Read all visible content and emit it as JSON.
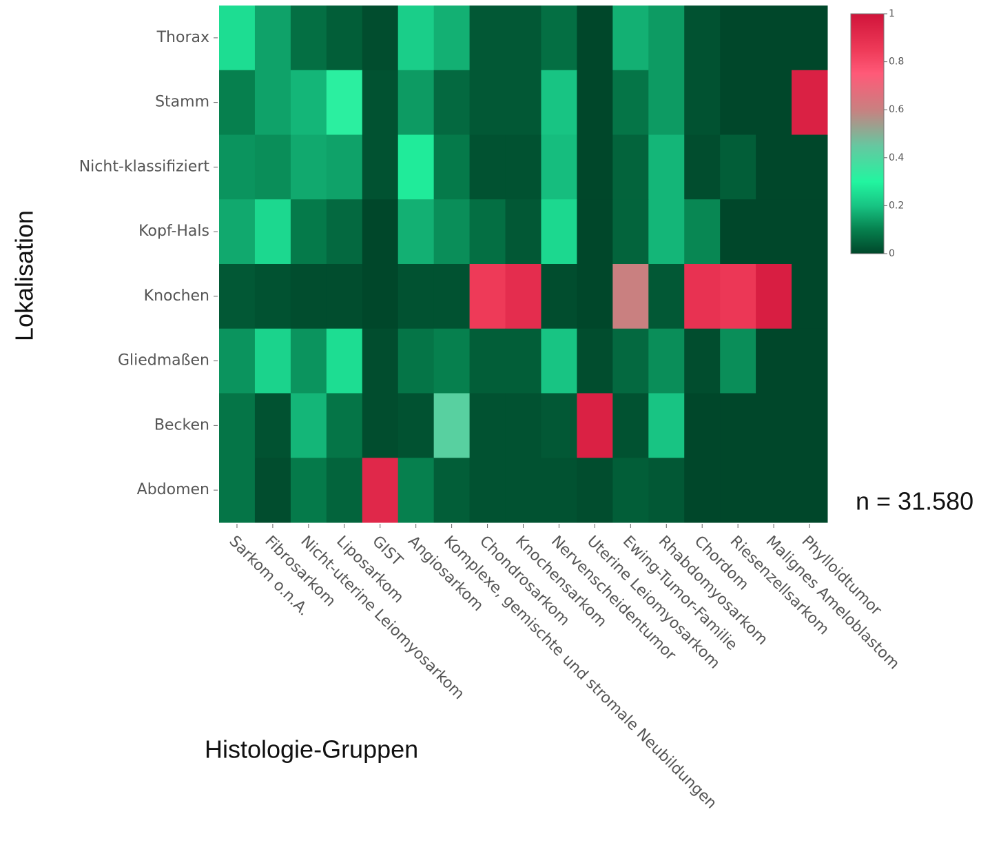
{
  "chart_data": {
    "type": "heatmap",
    "x_label": "Histologie-Gruppen",
    "y_label": "Lokalisation",
    "annotation": "n = 31.580",
    "categories": [
      "Sarkom o.n.A.",
      "Fibrosarkom",
      "Nicht-uterine Leiomyosarkom",
      "Liposarkom",
      "GIST",
      "Angiosarkom",
      "Komplexe, gemischte und stromale Neubildungen",
      "Chondrosarkom",
      "Knochensarkom",
      "Nervenscheidentumor",
      "Uterine Leiomyosarkom",
      "Ewing-Tumor-Familie",
      "Rhabdomyosarkom",
      "Chordom",
      "Riesenzellsarkom",
      "Malignes Ameloblastom",
      "Phylloidtumor"
    ],
    "rows": [
      "Thorax",
      "Stamm",
      "Nicht-klassifiziert",
      "Kopf-Hals",
      "Knochen",
      "Gliedmaßen",
      "Becken",
      "Abdomen"
    ],
    "z": [
      [
        0.25,
        0.15,
        0.07,
        0.04,
        0.01,
        0.22,
        0.17,
        0.03,
        0.03,
        0.07,
        0.0,
        0.17,
        0.14,
        0.02,
        0.0,
        0.0,
        0.0
      ],
      [
        0.1,
        0.15,
        0.18,
        0.32,
        0.02,
        0.14,
        0.06,
        0.03,
        0.03,
        0.2,
        0.0,
        0.08,
        0.14,
        0.02,
        0.0,
        0.0,
        0.95
      ],
      [
        0.13,
        0.12,
        0.16,
        0.15,
        0.02,
        0.28,
        0.09,
        0.02,
        0.02,
        0.19,
        0.0,
        0.05,
        0.18,
        0.01,
        0.04,
        0.0,
        0.0
      ],
      [
        0.16,
        0.24,
        0.09,
        0.06,
        0.0,
        0.17,
        0.12,
        0.07,
        0.03,
        0.24,
        0.0,
        0.05,
        0.18,
        0.11,
        0.0,
        0.0,
        0.0
      ],
      [
        0.03,
        0.02,
        0.01,
        0.01,
        0.0,
        0.02,
        0.02,
        0.85,
        0.9,
        0.01,
        0.0,
        0.6,
        0.03,
        0.88,
        0.86,
        0.96,
        0.0
      ],
      [
        0.13,
        0.23,
        0.13,
        0.25,
        0.01,
        0.08,
        0.1,
        0.04,
        0.04,
        0.2,
        0.01,
        0.06,
        0.12,
        0.01,
        0.12,
        0.0,
        0.0
      ],
      [
        0.08,
        0.02,
        0.18,
        0.08,
        0.01,
        0.02,
        0.42,
        0.02,
        0.02,
        0.03,
        0.95,
        0.02,
        0.2,
        0.0,
        0.0,
        0.0,
        0.0
      ],
      [
        0.08,
        0.01,
        0.09,
        0.05,
        0.92,
        0.1,
        0.04,
        0.02,
        0.02,
        0.02,
        0.01,
        0.04,
        0.03,
        0.0,
        0.0,
        0.0,
        0.0
      ]
    ],
    "zlim": [
      0,
      1
    ],
    "zticks": [
      0,
      0.2,
      0.4,
      0.6,
      0.8,
      1
    ],
    "colorscale": [
      [
        0,
        "#00472a"
      ],
      [
        0.1,
        "#06804e"
      ],
      [
        0.2,
        "#18c483"
      ],
      [
        0.3,
        "#22f5a0"
      ],
      [
        0.45,
        "#66c7a0"
      ],
      [
        0.6,
        "#c98080"
      ],
      [
        0.75,
        "#ff5a78"
      ],
      [
        0.85,
        "#ee3a58"
      ],
      [
        1,
        "#d0143a"
      ]
    ]
  }
}
